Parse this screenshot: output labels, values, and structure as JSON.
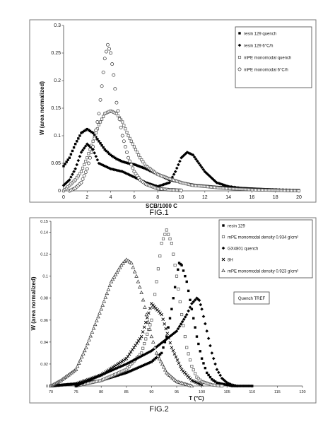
{
  "figures": [
    {
      "caption": "FIG.1",
      "chart_data": {
        "type": "scatter",
        "xlabel": "SCB/1000 C",
        "ylabel": "W (area normalized)",
        "xlim": [
          0,
          20
        ],
        "ylim": [
          0,
          0.3
        ],
        "x_ticks": [
          "0",
          "2",
          "4",
          "6",
          "8",
          "10",
          "12",
          "14",
          "16",
          "18",
          "20"
        ],
        "y_ticks": [
          "0",
          "0.05",
          "0.1",
          "0.15",
          "0.2",
          "0.25",
          "0.3"
        ],
        "grid": false,
        "legend_position": "top-right",
        "series": [
          {
            "name": "resin 129 quench",
            "marker": "filled-square",
            "x": [
              0,
              0.5,
              1,
              1.5,
              2,
              2.5,
              3,
              3.5,
              4,
              4.5,
              5,
              5.5,
              6,
              7,
              8,
              9,
              10,
              11,
              12,
              13,
              14,
              15,
              16,
              17,
              18,
              19,
              20
            ],
            "y": [
              0.045,
              0.06,
              0.085,
              0.105,
              0.112,
              0.105,
              0.09,
              0.075,
              0.065,
              0.058,
              0.053,
              0.05,
              0.048,
              0.04,
              0.03,
              0.02,
              0.015,
              0.011,
              0.009,
              0.007,
              0.006,
              0.005,
              0.004,
              0.003,
              0.002,
              0.001,
              0.001
            ]
          },
          {
            "name": "resin 129 6°C/h",
            "marker": "filled-diamond",
            "x": [
              0,
              0.5,
              1,
              1.5,
              2,
              2.5,
              3,
              4,
              5,
              6,
              7,
              8,
              9,
              9.5,
              10,
              10.5,
              11,
              11.5,
              12,
              13,
              14,
              15,
              16,
              18,
              20
            ],
            "y": [
              0.01,
              0.02,
              0.04,
              0.07,
              0.085,
              0.075,
              0.05,
              0.04,
              0.035,
              0.025,
              0.015,
              0.008,
              0.015,
              0.035,
              0.06,
              0.07,
              0.065,
              0.05,
              0.035,
              0.015,
              0.008,
              0.005,
              0.003,
              0.002,
              0.001
            ]
          },
          {
            "name": "mPE monomodal quench",
            "marker": "open-square",
            "x": [
              0,
              1,
              1.5,
              2,
              2.5,
              3,
              3.5,
              4,
              4.5,
              5,
              5.5,
              6,
              6.5,
              7,
              8,
              9,
              10,
              11,
              12,
              13,
              14,
              16,
              18,
              20
            ],
            "y": [
              0.0,
              0.02,
              0.035,
              0.06,
              0.09,
              0.12,
              0.14,
              0.145,
              0.14,
              0.125,
              0.1,
              0.08,
              0.06,
              0.045,
              0.03,
              0.022,
              0.015,
              0.01,
              0.008,
              0.006,
              0.004,
              0.002,
              0.001,
              0.0
            ]
          },
          {
            "name": "mPE monomodal 6°C/h",
            "marker": "open-circle",
            "x": [
              0.5,
              1,
              1.5,
              2,
              2.5,
              3,
              3.25,
              3.5,
              3.75,
              4,
              4.25,
              4.5,
              5,
              5.5,
              6,
              6.5,
              7,
              7.5,
              8,
              9,
              10
            ],
            "y": [
              0.0,
              0.005,
              0.015,
              0.04,
              0.08,
              0.14,
              0.19,
              0.24,
              0.265,
              0.25,
              0.21,
              0.16,
              0.1,
              0.06,
              0.035,
              0.02,
              0.012,
              0.008,
              0.004,
              0.002,
              0.001
            ]
          }
        ]
      }
    },
    {
      "caption": "FIG.2",
      "chart_data": {
        "type": "scatter",
        "xlabel": "T (°C)",
        "ylabel": "W (area normalized)",
        "xlim": [
          70,
          120
        ],
        "ylim": [
          0,
          0.15
        ],
        "x_ticks": [
          "70",
          "75",
          "80",
          "85",
          "90",
          "95",
          "100",
          "105",
          "110",
          "115",
          "120"
        ],
        "y_ticks": [
          "0",
          "0.02",
          "0.04",
          "0.06",
          "0.08",
          "0.1",
          "0.12",
          "0.14",
          "0.15"
        ],
        "grid": false,
        "legend_position": "top-right",
        "annotation": "Quench TREF",
        "series": [
          {
            "name": "resin 129",
            "marker": "filled-square",
            "x": [
              70,
              75,
              80,
              85,
              87,
              90,
              92,
              93,
              94,
              95,
              95.5,
              96,
              97,
              98,
              99,
              100,
              101,
              102,
              103,
              104,
              105,
              106,
              110
            ],
            "y": [
              0.0,
              0.002,
              0.005,
              0.012,
              0.016,
              0.022,
              0.03,
              0.045,
              0.07,
              0.1,
              0.112,
              0.11,
              0.095,
              0.07,
              0.045,
              0.025,
              0.012,
              0.006,
              0.003,
              0.002,
              0.001,
              0.0,
              0.0
            ]
          },
          {
            "name": "mPE monomodal density 0.934 g/cm³",
            "marker": "open-square",
            "x": [
              75,
              80,
              85,
              88,
              90,
              91,
              92,
              93,
              94,
              95,
              96,
              97,
              98,
              99,
              100,
              102,
              104
            ],
            "y": [
              0.0,
              0.005,
              0.015,
              0.03,
              0.06,
              0.095,
              0.13,
              0.142,
              0.13,
              0.1,
              0.065,
              0.035,
              0.018,
              0.008,
              0.004,
              0.001,
              0.0
            ]
          },
          {
            "name": "GX4801 quench",
            "marker": "filled-diamond",
            "x": [
              75,
              80,
              85,
              90,
              95,
              97,
              98,
              99,
              99.5,
              100,
              101,
              102,
              103,
              104,
              105,
              106,
              107
            ],
            "y": [
              0.0,
              0.01,
              0.02,
              0.032,
              0.05,
              0.065,
              0.075,
              0.08,
              0.078,
              0.07,
              0.05,
              0.03,
              0.015,
              0.007,
              0.003,
              0.001,
              0.0
            ]
          },
          {
            "name": "8H",
            "marker": "cross",
            "x": [
              70,
              75,
              80,
              85,
              88,
              90,
              92,
              94,
              96,
              98,
              100
            ],
            "y": [
              0.0,
              0.002,
              0.01,
              0.025,
              0.045,
              0.075,
              0.065,
              0.035,
              0.015,
              0.005,
              0.001
            ]
          },
          {
            "name": "mPE monomodal density 0.923 g/cm³",
            "marker": "open-triangle",
            "x": [
              70,
              72,
              75,
              77,
              80,
              82,
              84,
              85,
              86,
              87,
              88,
              89,
              90,
              91,
              93,
              95,
              98
            ],
            "y": [
              0.0,
              0.005,
              0.015,
              0.035,
              0.07,
              0.095,
              0.11,
              0.115,
              0.112,
              0.1,
              0.085,
              0.065,
              0.045,
              0.03,
              0.012,
              0.004,
              0.0
            ]
          }
        ]
      }
    }
  ]
}
